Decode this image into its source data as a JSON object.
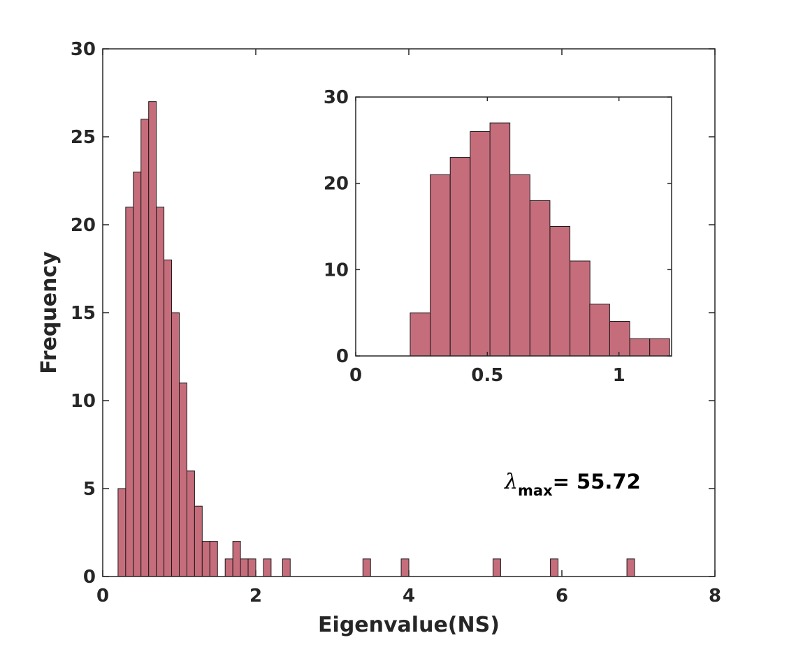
{
  "colors": {
    "bar_fill": "#C66D7C",
    "bar_stroke": "#1A1A1A",
    "axis": "#262626",
    "background": "#FFFFFF"
  },
  "chart_data": [
    {
      "type": "bar",
      "role": "main-histogram",
      "title": "",
      "xlabel": "Eigenvalue(NS)",
      "ylabel": "Frequency",
      "xlim": [
        0,
        8
      ],
      "ylim": [
        0,
        30
      ],
      "xticks": [
        0,
        2,
        4,
        6,
        8
      ],
      "yticks": [
        0,
        5,
        10,
        15,
        20,
        25,
        30
      ],
      "xtick_labels": [
        "0",
        "2",
        "4",
        "6",
        "8"
      ],
      "ytick_labels": [
        "0",
        "5",
        "10",
        "15",
        "20",
        "25",
        "30"
      ],
      "bin_width": 0.1,
      "bins": [
        {
          "x": 0.2,
          "value": 5
        },
        {
          "x": 0.3,
          "value": 21
        },
        {
          "x": 0.4,
          "value": 23
        },
        {
          "x": 0.5,
          "value": 26
        },
        {
          "x": 0.6,
          "value": 27
        },
        {
          "x": 0.7,
          "value": 21
        },
        {
          "x": 0.8,
          "value": 18
        },
        {
          "x": 0.9,
          "value": 15
        },
        {
          "x": 1.0,
          "value": 11
        },
        {
          "x": 1.1,
          "value": 6
        },
        {
          "x": 1.2,
          "value": 4
        },
        {
          "x": 1.3,
          "value": 2
        },
        {
          "x": 1.4,
          "value": 2
        },
        {
          "x": 1.6,
          "value": 1
        },
        {
          "x": 1.7,
          "value": 2
        },
        {
          "x": 1.8,
          "value": 1
        },
        {
          "x": 1.9,
          "value": 1
        },
        {
          "x": 2.1,
          "value": 1
        },
        {
          "x": 2.35,
          "value": 1
        },
        {
          "x": 3.4,
          "value": 1
        },
        {
          "x": 3.9,
          "value": 1
        },
        {
          "x": 5.1,
          "value": 1
        },
        {
          "x": 5.85,
          "value": 1
        },
        {
          "x": 6.85,
          "value": 1
        }
      ],
      "annotation": {
        "symbol": "λ",
        "subscript": "max",
        "text": "= 55.72"
      }
    },
    {
      "type": "bar",
      "role": "inset-histogram",
      "title": "",
      "xlabel": "",
      "ylabel": "",
      "xlim": [
        0,
        1.2
      ],
      "ylim": [
        0,
        30
      ],
      "xticks": [
        0,
        0.5,
        1
      ],
      "yticks": [
        0,
        10,
        20,
        30
      ],
      "xtick_labels": [
        "0",
        "0.5",
        "1"
      ],
      "ytick_labels": [
        "0",
        "10",
        "20",
        "30"
      ],
      "bin_width": 0.0758,
      "bins": [
        {
          "x": 0.207,
          "value": 5
        },
        {
          "x": 0.283,
          "value": 21
        },
        {
          "x": 0.359,
          "value": 23
        },
        {
          "x": 0.435,
          "value": 26
        },
        {
          "x": 0.51,
          "value": 27
        },
        {
          "x": 0.586,
          "value": 21
        },
        {
          "x": 0.662,
          "value": 18
        },
        {
          "x": 0.738,
          "value": 15
        },
        {
          "x": 0.814,
          "value": 11
        },
        {
          "x": 0.889,
          "value": 6
        },
        {
          "x": 0.965,
          "value": 4
        },
        {
          "x": 1.041,
          "value": 2
        },
        {
          "x": 1.117,
          "value": 2
        }
      ]
    }
  ]
}
